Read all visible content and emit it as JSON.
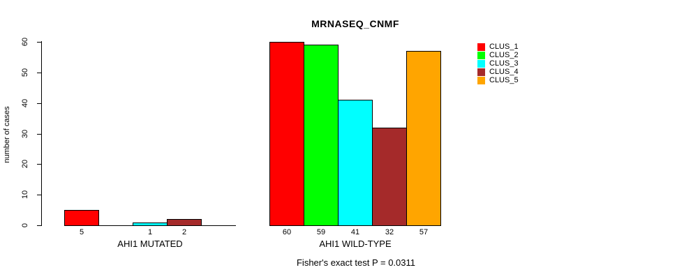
{
  "chart_data": {
    "type": "bar",
    "title": "MRNASEQ_CNMF",
    "ylabel": "number of cases",
    "xlabel": "",
    "ylim": [
      0,
      60
    ],
    "yticks": [
      0,
      10,
      20,
      30,
      40,
      50,
      60
    ],
    "grid": false,
    "legend_position": "right",
    "legend": [
      {
        "label": "CLUS_1",
        "color": "#FF0000"
      },
      {
        "label": "CLUS_2",
        "color": "#00FF00"
      },
      {
        "label": "CLUS_3",
        "color": "#00FFFF"
      },
      {
        "label": "CLUS_4",
        "color": "#A52A2A"
      },
      {
        "label": "CLUS_5",
        "color": "#FFA500"
      }
    ],
    "groups": [
      {
        "label": "AHI1 MUTATED",
        "series": [
          "CLUS_1",
          "CLUS_2",
          "CLUS_3",
          "CLUS_4",
          "CLUS_5"
        ],
        "values": [
          5,
          0,
          1,
          2,
          0
        ],
        "bar_labels": [
          "5",
          "",
          "1",
          "2",
          ""
        ]
      },
      {
        "label": "AHI1 WILD-TYPE",
        "series": [
          "CLUS_1",
          "CLUS_2",
          "CLUS_3",
          "CLUS_4",
          "CLUS_5"
        ],
        "values": [
          60,
          59,
          41,
          32,
          57
        ],
        "bar_labels": [
          "60",
          "59",
          "41",
          "32",
          "57"
        ]
      }
    ],
    "annotation": "Fisher's exact test P = 0.0311"
  }
}
